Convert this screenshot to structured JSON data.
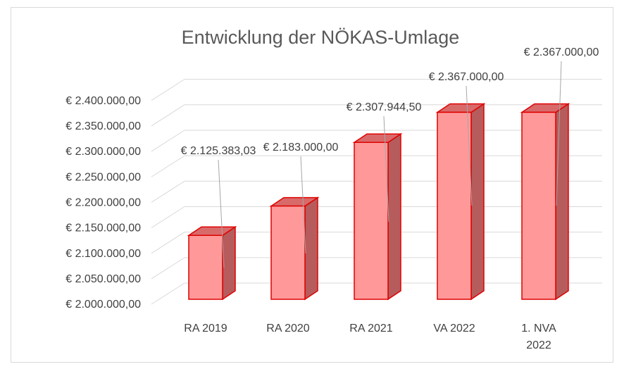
{
  "chart_data": {
    "type": "bar3d",
    "title": "Entwicklung der NÖKAS-Umlage",
    "categories": [
      "RA 2019",
      "RA 2020",
      "RA 2021",
      "VA 2022",
      "1. NVA 2022"
    ],
    "values": [
      2125383.03,
      2183000,
      2307944.5,
      2367000,
      2367000
    ],
    "value_labels": [
      "€ 2.125.383,03",
      "€ 2.183.000,00",
      "€ 2.307.944,50",
      "€ 2.367.000,00",
      "€ 2.367.000,00"
    ],
    "color": "#ff9999",
    "edge_color": "#e00000",
    "side_color": "#b65c5c",
    "top_color": "#d96a6a",
    "ylim": [
      2000000,
      2400000
    ],
    "yticks": [
      {
        "value": 2000000,
        "label": "€ 2.000.000,00"
      },
      {
        "value": 2050000,
        "label": "€ 2.050.000,00"
      },
      {
        "value": 2100000,
        "label": "€ 2.100.000,00"
      },
      {
        "value": 2150000,
        "label": "€ 2.150.000,00"
      },
      {
        "value": 2200000,
        "label": "€ 2.200.000,00"
      },
      {
        "value": 2250000,
        "label": "€ 2.250.000,00"
      },
      {
        "value": 2300000,
        "label": "€ 2.300.000,00"
      },
      {
        "value": 2350000,
        "label": "€ 2.350.000,00"
      },
      {
        "value": 2400000,
        "label": "€ 2.400.000,00"
      }
    ],
    "grid": true
  }
}
